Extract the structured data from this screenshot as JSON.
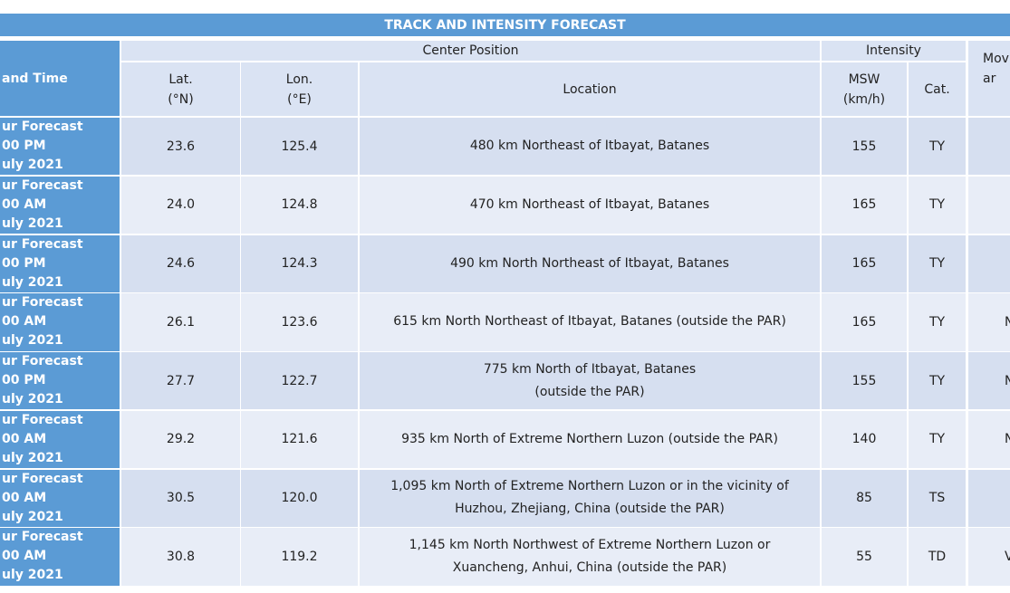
{
  "table": {
    "title": "TRACK AND INTENSITY FORECAST",
    "header": {
      "datetime": "and Time",
      "center_position": "Center Position",
      "intensity": "Intensity",
      "movement": [
        "Mov",
        "ar"
      ],
      "lat": [
        "Lat.",
        "(°N)"
      ],
      "lon": [
        "Lon.",
        "(°E)"
      ],
      "location": "Location",
      "msw": [
        "MSW",
        "(km/h)"
      ],
      "cat": "Cat."
    },
    "rows": [
      {
        "datetime": [
          "ur Forecast",
          "00 PM",
          "uly 2021"
        ],
        "lat": "23.6",
        "lon": "125.4",
        "location": [
          "480 km Northeast of Itbayat, Batanes"
        ],
        "msw": "155",
        "cat": "TY"
      },
      {
        "datetime": [
          "ur Forecast",
          "00 AM",
          "uly 2021"
        ],
        "lat": "24.0",
        "lon": "124.8",
        "location": [
          "470 km Northeast of Itbayat, Batanes"
        ],
        "msw": "165",
        "cat": "TY"
      },
      {
        "datetime": [
          "ur Forecast",
          "00 PM",
          "uly 2021"
        ],
        "lat": "24.6",
        "lon": "124.3",
        "location": [
          "490 km North Northeast of Itbayat, Batanes"
        ],
        "msw": "165",
        "cat": "TY"
      },
      {
        "datetime": [
          "ur Forecast",
          "00 AM",
          "uly 2021"
        ],
        "lat": "26.1",
        "lon": "123.6",
        "location": [
          "615 km North Northeast of Itbayat, Batanes (outside the PAR)"
        ],
        "msw": "165",
        "cat": "TY",
        "movement": "N"
      },
      {
        "datetime": [
          "ur Forecast",
          "00 PM",
          "uly 2021"
        ],
        "lat": "27.7",
        "lon": "122.7",
        "location": [
          "775 km North of Itbayat, Batanes",
          "(outside the PAR)"
        ],
        "msw": "155",
        "cat": "TY",
        "movement": "N"
      },
      {
        "datetime": [
          "ur Forecast",
          "00 AM",
          "uly 2021"
        ],
        "lat": "29.2",
        "lon": "121.6",
        "location": [
          "935 km North of Extreme Northern Luzon (outside the PAR)"
        ],
        "msw": "140",
        "cat": "TY",
        "movement": "N"
      },
      {
        "datetime": [
          "ur Forecast",
          "00 AM",
          "uly 2021"
        ],
        "lat": "30.5",
        "lon": "120.0",
        "location": [
          "1,095 km North of Extreme Northern Luzon or in the vicinity of",
          "Huzhou, Zhejiang, China (outside the PAR)"
        ],
        "msw": "85",
        "cat": "TS"
      },
      {
        "datetime": [
          "ur Forecast",
          "00 AM",
          "uly 2021"
        ],
        "lat": "30.8",
        "lon": "119.2",
        "location": [
          "1,145 km North Northwest of Extreme Northern Luzon or",
          "Xuancheng, Anhui, China (outside the PAR)"
        ],
        "msw": "55",
        "cat": "TD",
        "movement": "V"
      }
    ]
  }
}
